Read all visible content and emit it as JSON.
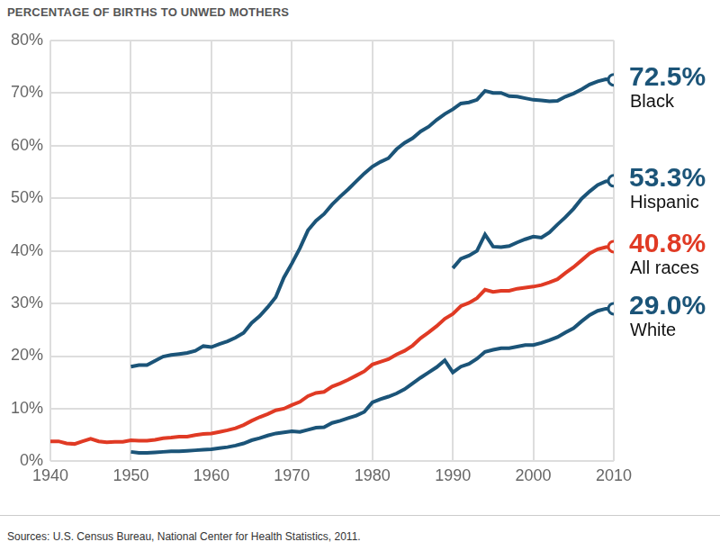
{
  "chart_data": {
    "type": "line",
    "title": "PERCENTAGE OF BIRTHS TO UNWED MOTHERS",
    "source": "Sources: U.S. Census Bureau, National Center for Health Statistics, 2011.",
    "x": [
      1940,
      1941,
      1942,
      1943,
      1944,
      1945,
      1946,
      1947,
      1948,
      1949,
      1950,
      1951,
      1952,
      1953,
      1954,
      1955,
      1956,
      1957,
      1958,
      1959,
      1960,
      1961,
      1962,
      1963,
      1964,
      1965,
      1966,
      1967,
      1968,
      1969,
      1970,
      1971,
      1972,
      1973,
      1974,
      1975,
      1976,
      1977,
      1978,
      1979,
      1980,
      1981,
      1982,
      1983,
      1984,
      1985,
      1986,
      1987,
      1988,
      1989,
      1990,
      1991,
      1992,
      1993,
      1994,
      1995,
      1996,
      1997,
      1998,
      1999,
      2000,
      2001,
      2002,
      2003,
      2004,
      2005,
      2006,
      2007,
      2008,
      2009,
      2010
    ],
    "xlim": [
      1940,
      2010
    ],
    "xticks": [
      1940,
      1950,
      1960,
      1970,
      1980,
      1990,
      2000,
      2010
    ],
    "ylim": [
      0,
      80
    ],
    "yticks": [
      {
        "value": 0,
        "label": "0%"
      },
      {
        "value": 10,
        "label": "10%"
      },
      {
        "value": 20,
        "label": "20%"
      },
      {
        "value": 30,
        "label": "30%"
      },
      {
        "value": 40,
        "label": "40%"
      },
      {
        "value": 50,
        "label": "50%"
      },
      {
        "value": 60,
        "label": "60%"
      },
      {
        "value": 70,
        "label": "70%"
      },
      {
        "value": 80,
        "label": "80%"
      }
    ],
    "grid": true,
    "series": [
      {
        "name": "Black",
        "color": "#1b5478",
        "values": [
          null,
          null,
          null,
          null,
          null,
          null,
          null,
          null,
          null,
          null,
          18.0,
          18.3,
          18.3,
          19.1,
          19.9,
          20.2,
          20.4,
          20.6,
          21.0,
          21.9,
          21.7,
          22.3,
          22.8,
          23.5,
          24.4,
          26.3,
          27.6,
          29.3,
          31.2,
          34.9,
          37.6,
          40.5,
          43.9,
          45.7,
          47.0,
          48.8,
          50.3,
          51.7,
          53.2,
          54.7,
          56.0,
          56.9,
          57.6,
          59.3,
          60.5,
          61.4,
          62.7,
          63.6,
          64.9,
          66.0,
          66.9,
          68.0,
          68.2,
          68.7,
          70.4,
          70.0,
          70.0,
          69.4,
          69.3,
          69.0,
          68.7,
          68.6,
          68.4,
          68.5,
          69.3,
          69.9,
          70.7,
          71.6,
          72.2,
          72.6,
          72.5
        ],
        "value_labels": [
          null,
          null,
          null,
          null,
          null,
          null,
          null,
          null,
          null,
          null,
          null,
          null,
          null,
          null,
          null,
          null,
          null,
          null,
          null,
          null,
          null,
          null,
          null,
          null,
          null,
          null,
          null,
          null,
          null,
          null,
          null,
          null,
          null,
          null,
          null,
          null,
          null,
          null,
          null,
          null,
          null,
          null,
          null,
          null,
          null,
          null,
          null,
          null,
          null,
          null,
          null,
          null,
          null,
          null,
          null,
          null,
          null,
          null,
          null,
          null,
          null,
          null,
          null,
          null,
          null,
          null,
          null,
          null,
          null,
          null,
          "72.5%"
        ]
      },
      {
        "name": "Hispanic",
        "color": "#1b5478",
        "values": [
          null,
          null,
          null,
          null,
          null,
          null,
          null,
          null,
          null,
          null,
          null,
          null,
          null,
          null,
          null,
          null,
          null,
          null,
          null,
          null,
          null,
          null,
          null,
          null,
          null,
          null,
          null,
          null,
          null,
          null,
          null,
          null,
          null,
          null,
          null,
          null,
          null,
          null,
          null,
          null,
          null,
          null,
          null,
          null,
          null,
          null,
          null,
          null,
          null,
          null,
          36.7,
          38.5,
          39.1,
          40.0,
          43.1,
          40.8,
          40.7,
          40.9,
          41.6,
          42.2,
          42.7,
          42.5,
          43.5,
          45.0,
          46.4,
          48.0,
          49.9,
          51.3,
          52.5,
          53.2,
          53.3
        ],
        "value_labels": [
          null,
          null,
          null,
          null,
          null,
          null,
          null,
          null,
          null,
          null,
          null,
          null,
          null,
          null,
          null,
          null,
          null,
          null,
          null,
          null,
          null,
          null,
          null,
          null,
          null,
          null,
          null,
          null,
          null,
          null,
          null,
          null,
          null,
          null,
          null,
          null,
          null,
          null,
          null,
          null,
          null,
          null,
          null,
          null,
          null,
          null,
          null,
          null,
          null,
          null,
          null,
          null,
          null,
          null,
          null,
          null,
          null,
          null,
          null,
          null,
          null,
          null,
          null,
          null,
          null,
          null,
          null,
          null,
          null,
          null,
          "53.3%"
        ]
      },
      {
        "name": "All races",
        "color": "#e03a24",
        "values": [
          3.8,
          3.8,
          3.4,
          3.3,
          3.8,
          4.3,
          3.8,
          3.6,
          3.7,
          3.7,
          4.0,
          3.9,
          3.9,
          4.1,
          4.4,
          4.5,
          4.7,
          4.7,
          5.0,
          5.2,
          5.3,
          5.6,
          5.9,
          6.3,
          6.9,
          7.7,
          8.4,
          9.0,
          9.7,
          10.0,
          10.7,
          11.3,
          12.4,
          13.0,
          13.2,
          14.2,
          14.8,
          15.5,
          16.3,
          17.1,
          18.4,
          18.9,
          19.4,
          20.3,
          21.0,
          22.0,
          23.4,
          24.5,
          25.7,
          27.1,
          28.0,
          29.5,
          30.1,
          31.0,
          32.6,
          32.2,
          32.4,
          32.4,
          32.8,
          33.0,
          33.2,
          33.5,
          34.0,
          34.6,
          35.8,
          36.9,
          38.2,
          39.5,
          40.3,
          40.7,
          40.8
        ],
        "value_labels": [
          null,
          null,
          null,
          null,
          null,
          null,
          null,
          null,
          null,
          null,
          null,
          null,
          null,
          null,
          null,
          null,
          null,
          null,
          null,
          null,
          null,
          null,
          null,
          null,
          null,
          null,
          null,
          null,
          null,
          null,
          null,
          null,
          null,
          null,
          null,
          null,
          null,
          null,
          null,
          null,
          null,
          null,
          null,
          null,
          null,
          null,
          null,
          null,
          null,
          null,
          null,
          null,
          null,
          null,
          null,
          null,
          null,
          null,
          null,
          null,
          null,
          null,
          null,
          null,
          null,
          null,
          null,
          null,
          null,
          null,
          "40.8%"
        ]
      },
      {
        "name": "White",
        "color": "#1b5478",
        "values": [
          null,
          null,
          null,
          null,
          null,
          null,
          null,
          null,
          null,
          null,
          1.8,
          1.6,
          1.6,
          1.7,
          1.8,
          1.9,
          1.9,
          2.0,
          2.1,
          2.2,
          2.3,
          2.5,
          2.7,
          3.0,
          3.4,
          4.0,
          4.4,
          4.9,
          5.3,
          5.5,
          5.7,
          5.6,
          6.0,
          6.4,
          6.5,
          7.3,
          7.7,
          8.2,
          8.7,
          9.4,
          11.2,
          11.8,
          12.3,
          12.9,
          13.7,
          14.8,
          15.9,
          16.9,
          17.9,
          19.2,
          16.9,
          18.0,
          18.5,
          19.5,
          20.8,
          21.2,
          21.5,
          21.5,
          21.8,
          22.1,
          22.1,
          22.5,
          23.0,
          23.6,
          24.5,
          25.3,
          26.6,
          27.8,
          28.6,
          29.0,
          29.0
        ],
        "value_labels": [
          null,
          null,
          null,
          null,
          null,
          null,
          null,
          null,
          null,
          null,
          null,
          null,
          null,
          null,
          null,
          null,
          null,
          null,
          null,
          null,
          null,
          null,
          null,
          null,
          null,
          null,
          null,
          null,
          null,
          null,
          null,
          null,
          null,
          null,
          null,
          null,
          null,
          null,
          null,
          null,
          null,
          null,
          null,
          null,
          null,
          null,
          null,
          null,
          null,
          null,
          null,
          null,
          null,
          null,
          null,
          null,
          null,
          null,
          null,
          null,
          null,
          null,
          null,
          null,
          null,
          null,
          null,
          null,
          null,
          null,
          "29.0%"
        ]
      }
    ]
  }
}
